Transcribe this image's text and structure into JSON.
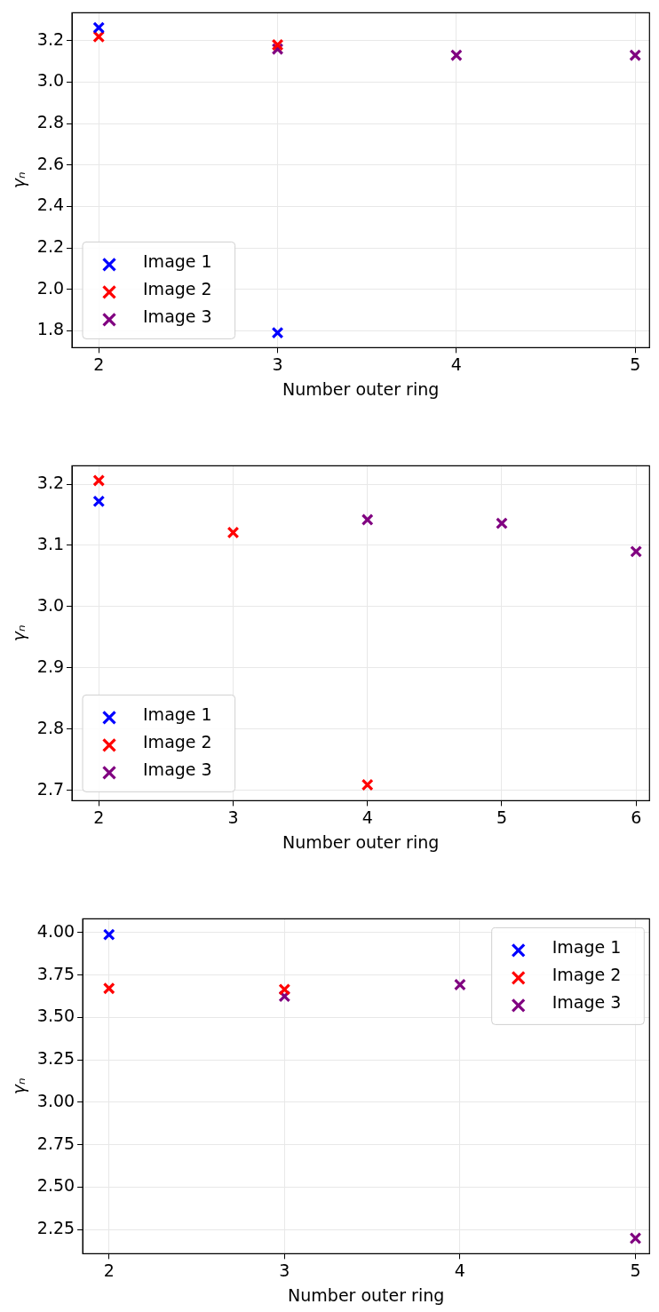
{
  "chart_data": [
    {
      "type": "scatter",
      "xlabel": "Number outer ring",
      "ylabel": "γₙ",
      "xlim": [
        1.85,
        5.08
      ],
      "ylim": [
        1.718,
        3.335
      ],
      "xticks": [
        2,
        3,
        4,
        5
      ],
      "yticks": [
        1.8,
        {
          "value": 2,
          "label": "2.0"
        },
        2.2,
        2.4,
        2.6,
        2.8,
        {
          "value": 3,
          "label": "3.0"
        },
        3.2
      ],
      "grid": true,
      "legend": "bottom left",
      "marker": "cross",
      "series": [
        {
          "name": "Image 1",
          "color": "#0000ff",
          "x": [
            2,
            3
          ],
          "values": [
            3.263,
            1.79
          ]
        },
        {
          "name": "Image 2",
          "color": "#ff0000",
          "x": [
            2,
            3
          ],
          "values": [
            3.22,
            3.18
          ]
        },
        {
          "name": "Image 3",
          "color": "#800080",
          "x": [
            3,
            4,
            5
          ],
          "values": [
            3.16,
            3.13,
            3.13
          ]
        }
      ]
    },
    {
      "type": "scatter",
      "xlabel": "Number outer ring",
      "ylabel": "γₙ",
      "xlim": [
        1.8,
        6.1
      ],
      "ylim": [
        2.683,
        3.23
      ],
      "xticks": [
        2,
        3,
        4,
        5,
        6
      ],
      "yticks": [
        2.7,
        2.8,
        2.9,
        {
          "value": 3,
          "label": "3.0"
        },
        3.1,
        3.2
      ],
      "grid": true,
      "legend": "bottom left",
      "marker": "cross",
      "series": [
        {
          "name": "Image 1",
          "color": "#0000ff",
          "x": [
            2
          ],
          "values": [
            3.172
          ]
        },
        {
          "name": "Image 2",
          "color": "#ff0000",
          "x": [
            2,
            3,
            4
          ],
          "values": [
            3.206,
            3.121,
            2.709
          ]
        },
        {
          "name": "Image 3",
          "color": "#800080",
          "x": [
            4,
            5,
            6
          ],
          "values": [
            3.142,
            3.136,
            3.09
          ]
        }
      ]
    },
    {
      "type": "scatter",
      "xlabel": "Number outer ring",
      "ylabel": "γₙ",
      "xlim": [
        1.85,
        5.08
      ],
      "ylim": [
        2.107,
        4.081
      ],
      "xticks": [
        2,
        3,
        4,
        5
      ],
      "yticks": [
        2.25,
        {
          "value": 2.5,
          "label": "2.50"
        },
        2.75,
        {
          "value": 3,
          "label": "3.00"
        },
        3.25,
        {
          "value": 3.5,
          "label": "3.50"
        },
        3.75,
        {
          "value": 4,
          "label": "4.00"
        }
      ],
      "grid": true,
      "legend": "top right",
      "marker": "cross",
      "series": [
        {
          "name": "Image 1",
          "color": "#0000ff",
          "x": [
            2
          ],
          "values": [
            3.988
          ]
        },
        {
          "name": "Image 2",
          "color": "#ff0000",
          "x": [
            2,
            3
          ],
          "values": [
            3.671,
            3.665
          ]
        },
        {
          "name": "Image 3",
          "color": "#800080",
          "x": [
            3,
            4,
            5
          ],
          "values": [
            3.624,
            3.693,
            2.198
          ]
        }
      ]
    }
  ]
}
